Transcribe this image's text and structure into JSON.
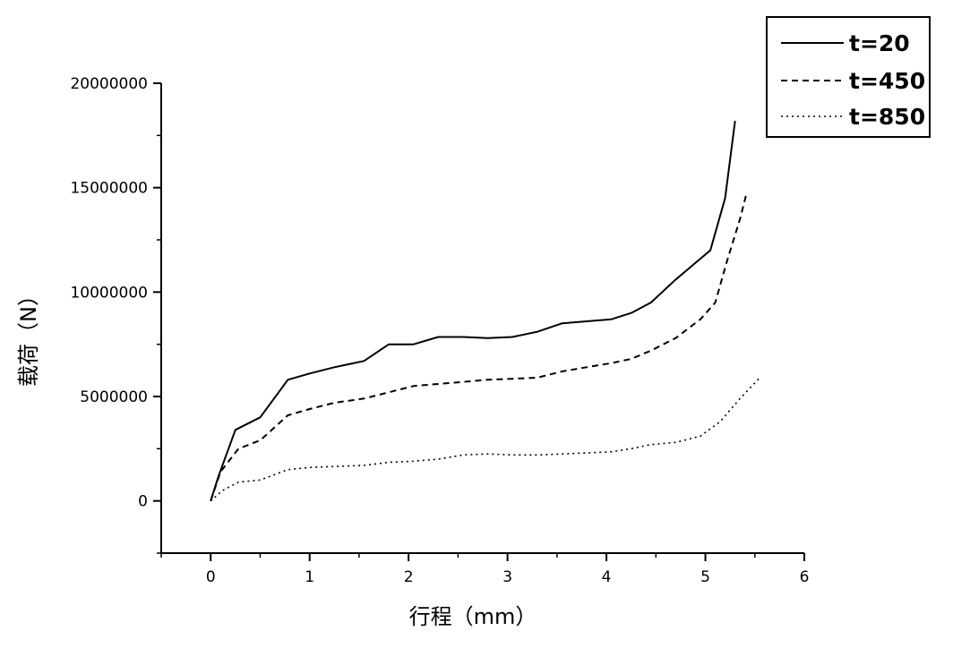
{
  "chart_data": {
    "type": "line",
    "title": "",
    "xlabel": "行程（mm）",
    "ylabel": "载荷（N）",
    "xlim": [
      -0.5,
      6
    ],
    "ylim": [
      -2500000,
      20000000
    ],
    "xticks": [
      0,
      1,
      2,
      3,
      4,
      5,
      6
    ],
    "yticks": [
      0,
      5000000,
      10000000,
      15000000,
      20000000
    ],
    "xtick_labels": [
      "0",
      "1",
      "2",
      "3",
      "4",
      "5",
      "6"
    ],
    "ytick_labels": [
      "0",
      "5000000",
      "10000000",
      "15000000",
      "20000000"
    ],
    "grid": false,
    "legend": "top-right",
    "series": [
      {
        "name": "t=20",
        "style": "solid",
        "x": [
          0,
          0.08,
          0.25,
          0.5,
          0.78,
          1.0,
          1.25,
          1.55,
          1.8,
          2.05,
          2.3,
          2.55,
          2.8,
          3.05,
          3.3,
          3.55,
          3.8,
          4.05,
          4.25,
          4.45,
          4.7,
          4.95,
          5.05,
          5.2,
          5.3
        ],
        "values": [
          0,
          1200000,
          3400000,
          4000000,
          5800000,
          6100000,
          6400000,
          6700000,
          7500000,
          7500000,
          7850000,
          7850000,
          7800000,
          7850000,
          8100000,
          8500000,
          8600000,
          8700000,
          9000000,
          9500000,
          10600000,
          11600000,
          12000000,
          14500000,
          18200000
        ]
      },
      {
        "name": "t=450",
        "style": "dashed",
        "x": [
          0,
          0.1,
          0.28,
          0.5,
          0.78,
          1.0,
          1.25,
          1.55,
          1.8,
          2.05,
          2.3,
          2.55,
          2.8,
          3.05,
          3.3,
          3.55,
          3.8,
          4.05,
          4.25,
          4.45,
          4.7,
          4.95,
          5.1,
          5.22,
          5.35,
          5.42
        ],
        "values": [
          0,
          1400000,
          2500000,
          2900000,
          4100000,
          4400000,
          4700000,
          4900000,
          5200000,
          5500000,
          5600000,
          5700000,
          5800000,
          5850000,
          5900000,
          6200000,
          6400000,
          6600000,
          6800000,
          7200000,
          7800000,
          8700000,
          9500000,
          11500000,
          13500000,
          14800000
        ]
      },
      {
        "name": "t=850",
        "style": "dotted",
        "x": [
          0,
          0.12,
          0.28,
          0.5,
          0.78,
          1.0,
          1.25,
          1.55,
          1.8,
          2.05,
          2.3,
          2.55,
          2.8,
          3.05,
          3.3,
          3.55,
          3.8,
          4.05,
          4.25,
          4.45,
          4.7,
          4.95,
          5.15,
          5.35,
          5.55
        ],
        "values": [
          0,
          500000,
          900000,
          1000000,
          1500000,
          1600000,
          1650000,
          1700000,
          1850000,
          1900000,
          2000000,
          2200000,
          2250000,
          2200000,
          2200000,
          2250000,
          2300000,
          2350000,
          2500000,
          2700000,
          2800000,
          3100000,
          3800000,
          4900000,
          5900000
        ]
      }
    ]
  }
}
